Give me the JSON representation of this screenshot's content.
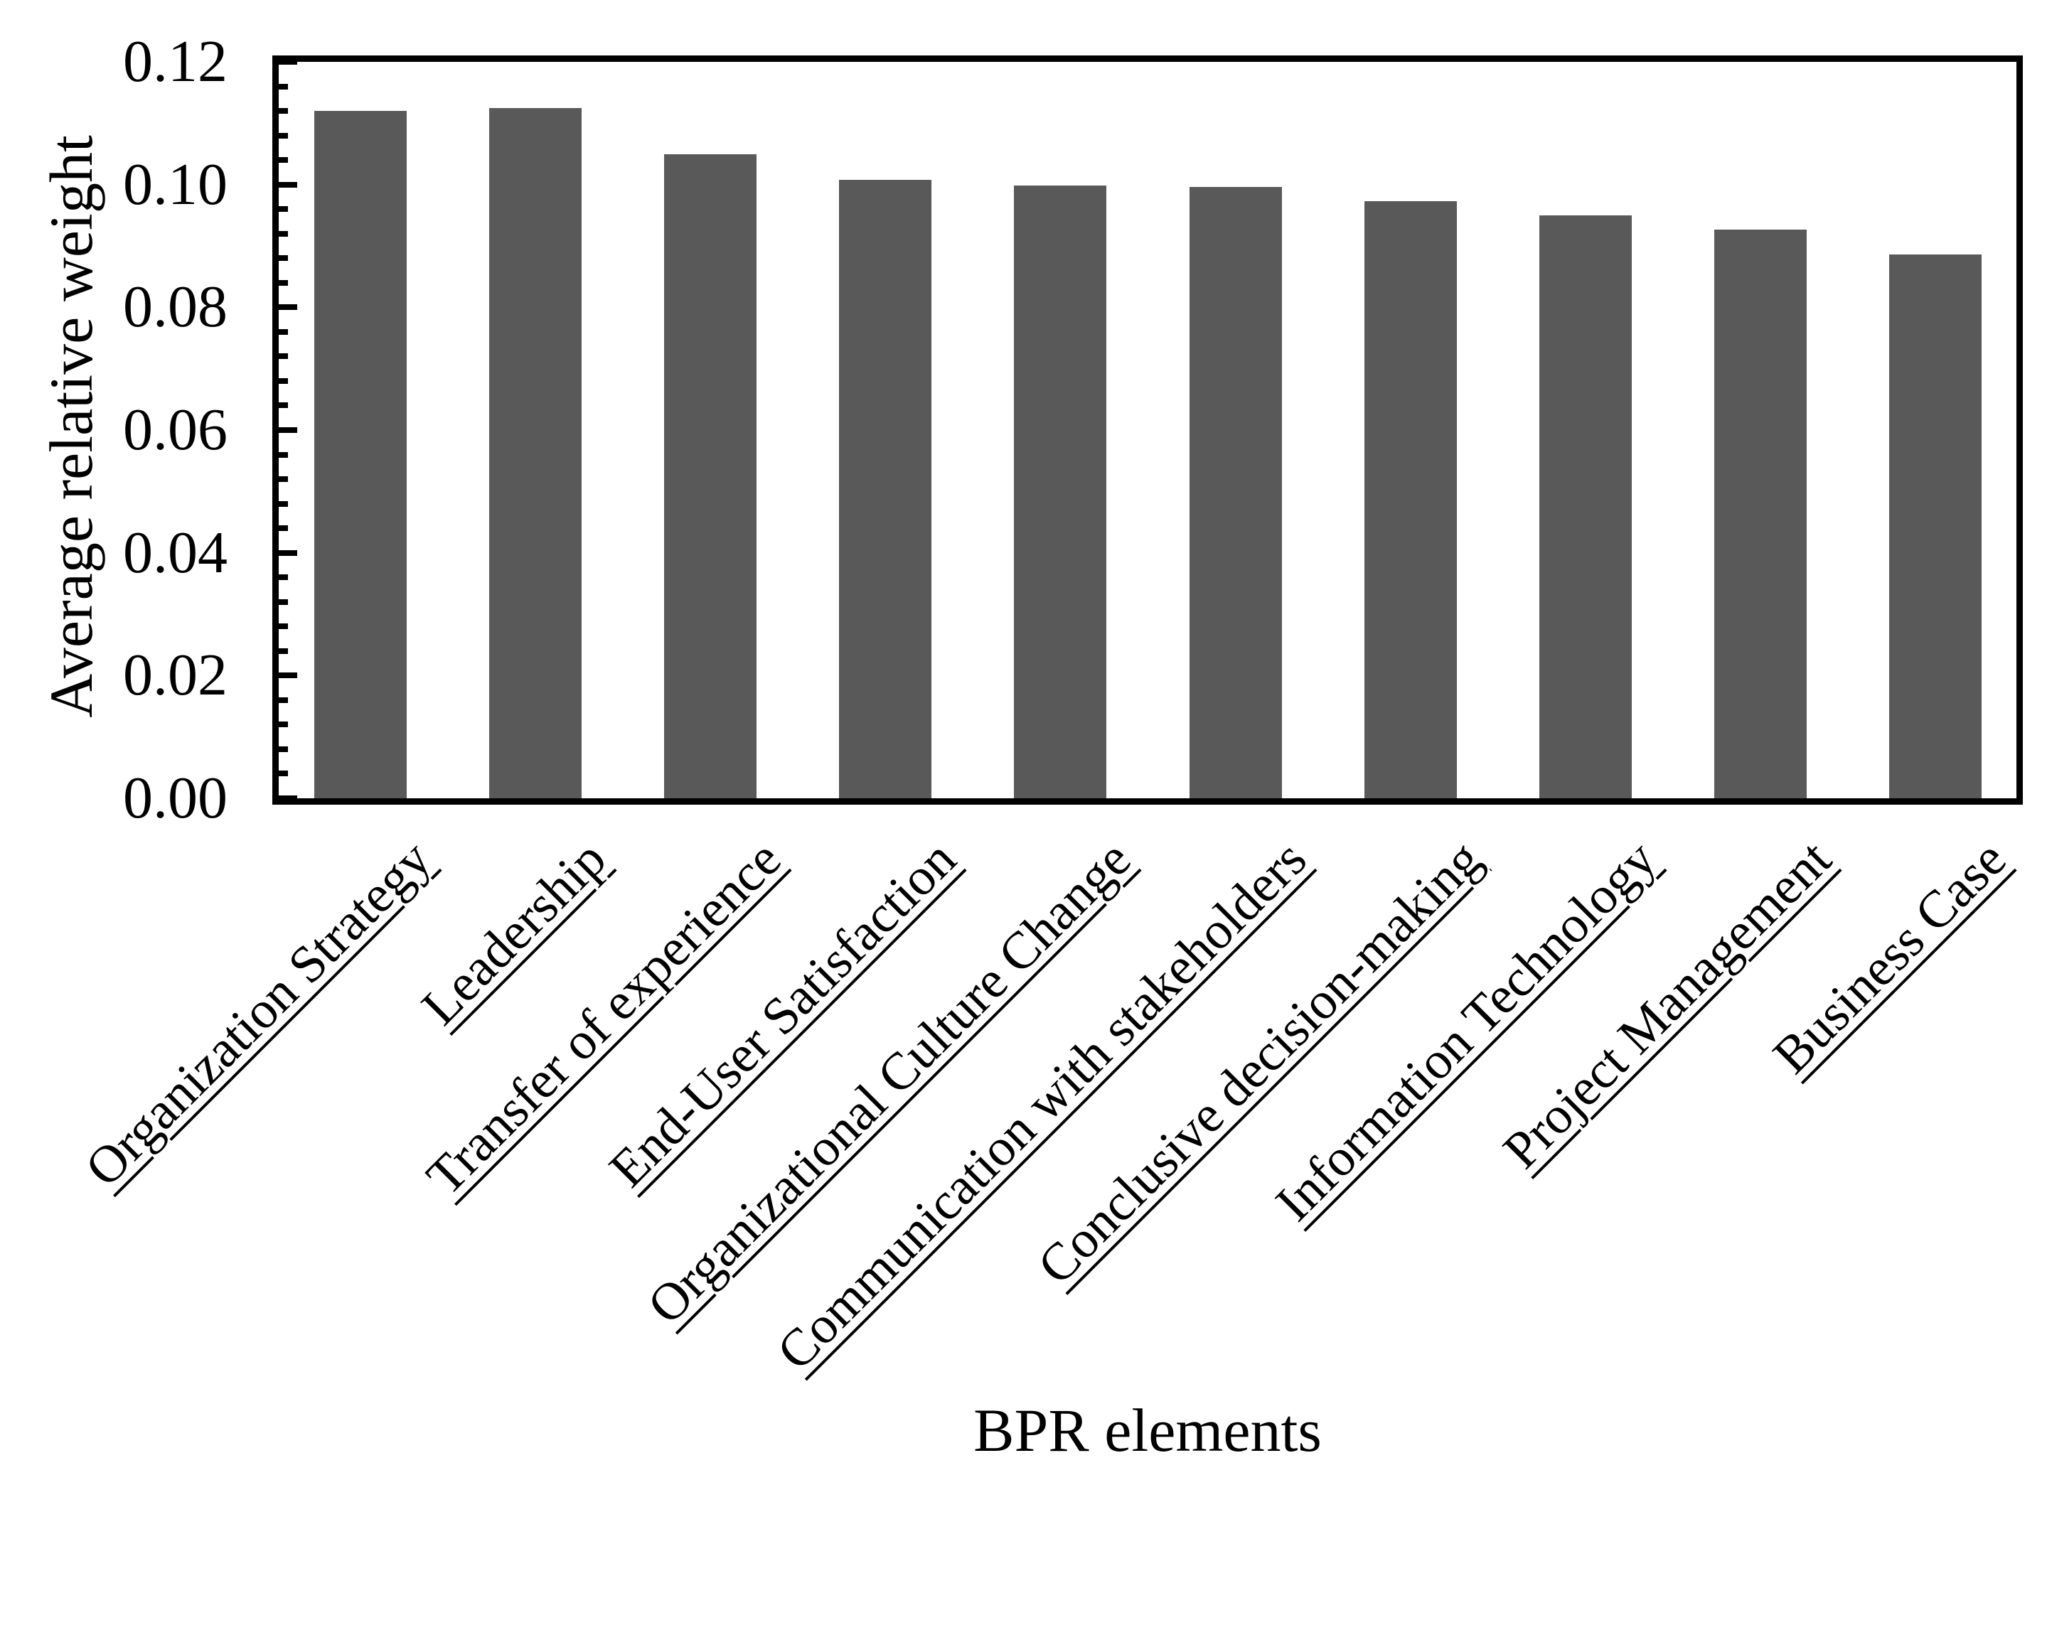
{
  "chart_data": {
    "type": "bar",
    "title": "",
    "xlabel": "BPR elements",
    "ylabel": "Average relative weight",
    "categories": [
      "Organization Strategy",
      "Leadership",
      "Transfer of experience",
      "End-User Satisfaction",
      "Organizational Culture Change",
      "Communication with stakeholders",
      "Conclusive decision-making",
      "Information Technology",
      "Project Management",
      "Business Case"
    ],
    "values": [
      0.112,
      0.1125,
      0.105,
      0.1008,
      0.0998,
      0.0996,
      0.0973,
      0.095,
      0.0927,
      0.0886
    ],
    "ylim": [
      0,
      0.12
    ],
    "ytick_step": 0.02,
    "ytick_labels": [
      "0.00",
      "0.02",
      "0.04",
      "0.06",
      "0.08",
      "0.10",
      "0.12"
    ],
    "minor_tick_step": 0.004,
    "bar_color": "#595959",
    "axis_color": "#000000",
    "grid": false,
    "legend": null,
    "category_labels_rotation_deg": 45,
    "category_labels_underlined": true
  }
}
